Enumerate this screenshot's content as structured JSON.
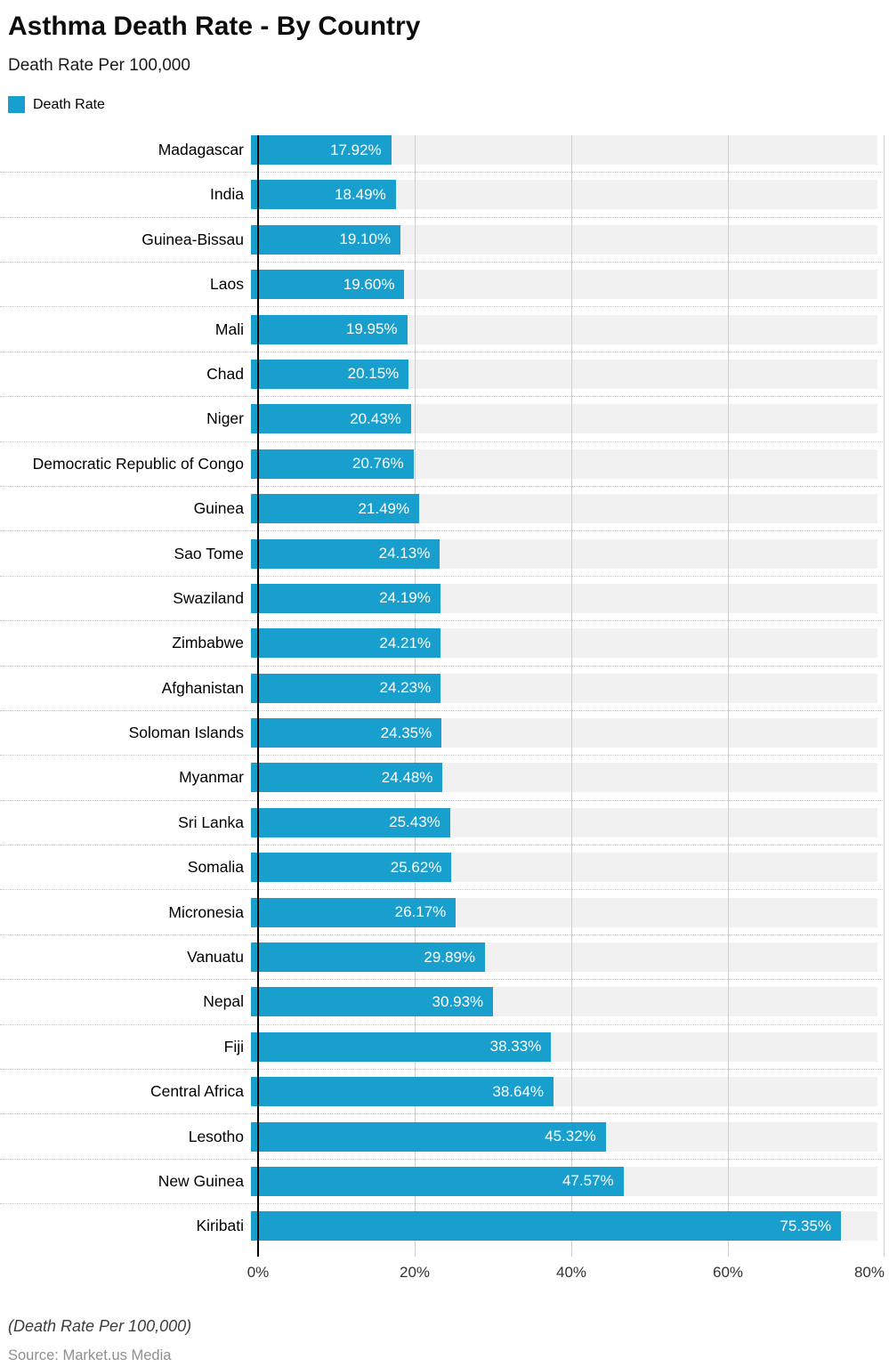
{
  "header": {
    "title": "Asthma Death Rate - By Country",
    "subtitle": "Death Rate Per 100,000",
    "legend": {
      "label": "Death Rate",
      "color": "#189fce"
    }
  },
  "chart_data": {
    "type": "bar",
    "orientation": "horizontal",
    "title": "Asthma Death Rate - By Country",
    "subtitle": "Death Rate Per 100,000",
    "legend_entries": [
      "Death Rate"
    ],
    "legend_position": "top-left",
    "categories": [
      "Madagascar",
      "India",
      "Guinea-Bissau",
      "Laos",
      "Mali",
      "Chad",
      "Niger",
      "Democratic Republic of Congo",
      "Guinea",
      "Sao Tome",
      "Swaziland",
      "Zimbabwe",
      "Afghanistan",
      "Soloman Islands",
      "Myanmar",
      "Sri Lanka",
      "Somalia",
      "Micronesia",
      "Vanuatu",
      "Nepal",
      "Fiji",
      "Central Africa",
      "Lesotho",
      "New Guinea",
      "Kiribati"
    ],
    "values": [
      17.92,
      18.49,
      19.1,
      19.6,
      19.95,
      20.15,
      20.43,
      20.76,
      21.49,
      24.13,
      24.19,
      24.21,
      24.23,
      24.35,
      24.48,
      25.43,
      25.62,
      26.17,
      29.89,
      30.93,
      38.33,
      38.64,
      45.32,
      47.57,
      75.35
    ],
    "value_labels": [
      "17.92%",
      "18.49%",
      "19.10%",
      "19.60%",
      "19.95%",
      "20.15%",
      "20.43%",
      "20.76%",
      "21.49%",
      "24.13%",
      "24.19%",
      "24.21%",
      "24.23%",
      "24.35%",
      "24.48%",
      "25.43%",
      "25.62%",
      "26.17%",
      "29.89%",
      "30.93%",
      "38.33%",
      "38.64%",
      "45.32%",
      "47.57%",
      "75.35%"
    ],
    "xlim": [
      0,
      80
    ],
    "x_ticks": [
      0,
      20,
      40,
      60,
      80
    ],
    "x_tick_labels": [
      "0%",
      "20%",
      "40%",
      "60%",
      "80%"
    ],
    "grid": "vertical",
    "bar_color": "#189fce",
    "track_color": "#f1f1f1",
    "value_label_color": "#ffffff"
  },
  "footer": {
    "note": "(Death Rate Per 100,000)",
    "source": "Source: Market.us Media"
  }
}
